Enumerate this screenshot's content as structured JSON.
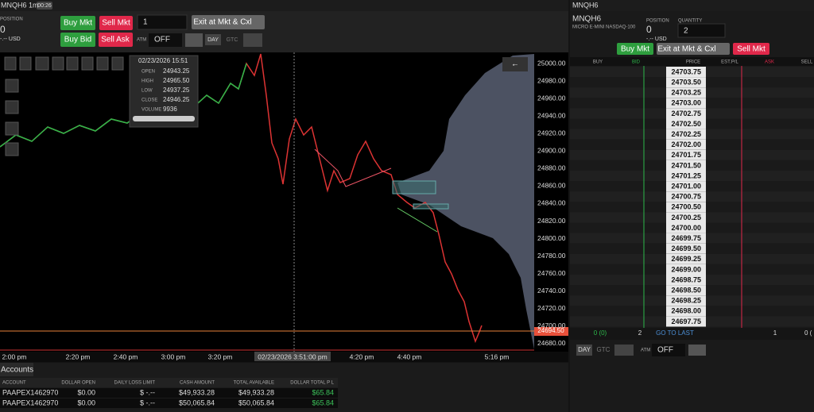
{
  "left_tab": {
    "symbol": "MNQH6 1m",
    "timer": "00:26"
  },
  "left_order": {
    "position_label": "POSITION",
    "position": "0",
    "pnl": "-.-- USD",
    "buy_mkt": "Buy Mkt",
    "sell_mkt": "Sell Mkt",
    "quantity": "1",
    "exit": "Exit at Mkt & Cxl",
    "buy_bid": "Buy Bid",
    "sell_ask": "Sell Ask",
    "atm_label": "ATM",
    "atm": "OFF",
    "tif_day": "DAY",
    "tif_gtc": "GTC"
  },
  "chart": {
    "price_labels": [
      "25000.00",
      "24980.00",
      "24960.00",
      "24940.00",
      "24920.00",
      "24900.00",
      "24880.00",
      "24860.00",
      "24840.00",
      "24820.00",
      "24800.00",
      "24780.00",
      "24760.00",
      "24740.00",
      "24720.00",
      "24700.00",
      "24680.00"
    ],
    "last_price": "24694.50",
    "time_labels": [
      "2:00 pm",
      "2:20 pm",
      "2:40 pm",
      "3:00 pm",
      "3:20 pm",
      "02/23/2026 3:51:00 pm",
      "4:20 pm",
      "4:40 pm",
      "5:16 pm"
    ],
    "tooltip": {
      "date": "02/23/2026 15:51",
      "rows": [
        {
          "label": "OPEN",
          "value": "24943.25"
        },
        {
          "label": "HIGH",
          "value": "24965.50"
        },
        {
          "label": "LOW",
          "value": "24937.25"
        },
        {
          "label": "CLOSE",
          "value": "24946.25"
        },
        {
          "label": "VOLUME",
          "value": "9936"
        }
      ]
    }
  },
  "dom": {
    "symbol": "MNQH6",
    "description": "MICRO E-MINI NASDAQ-100",
    "position_label": "POSITION",
    "quantity_label": "QUANTITY",
    "position": "0",
    "pnl": "-.-- USD",
    "quantity": "2",
    "buy_mkt": "Buy Mkt",
    "exit": "Exit at Mkt & Cxl",
    "sell_mkt": "Sell Mkt",
    "columns": [
      "BUY",
      "BID",
      "PRICE",
      "EST.P/L",
      "ASK",
      "SELL"
    ],
    "prices": [
      "24703.75",
      "24703.50",
      "24703.25",
      "24703.00",
      "24702.75",
      "24702.50",
      "24702.25",
      "24702.00",
      "24701.75",
      "24701.50",
      "24701.25",
      "24701.00",
      "24700.75",
      "24700.50",
      "24700.25",
      "24700.00",
      "24699.75",
      "24699.50",
      "24699.25",
      "24699.00",
      "24698.75",
      "24698.50",
      "24698.25",
      "24698.00",
      "24697.75"
    ],
    "footer": {
      "buy": "0 (0)",
      "bid": "2",
      "go_to_last": "GO TO LAST",
      "ask": "1",
      "sell": "0 ("
    },
    "tif_day": "DAY",
    "tif_gtc": "GTC",
    "atm_label": "ATM",
    "atm": "OFF"
  },
  "accounts": {
    "tab": "Accounts",
    "columns": [
      "ACCOUNT",
      "DOLLAR OPEN",
      "DAILY LOSS LIMIT",
      "CASH AMOUNT",
      "TOTAL AVAILABLE",
      "DOLLAR TOTAL P L"
    ],
    "rows": [
      [
        "PAAPEX1462970",
        "$0.00",
        "$ -.--",
        "$49,933.28",
        "$49,933.28",
        "$65.84"
      ],
      [
        "PAAPEX1462970",
        "$0.00",
        "$ -.--",
        "$50,065.84",
        "$50,065.84",
        "$65.84"
      ]
    ]
  }
}
